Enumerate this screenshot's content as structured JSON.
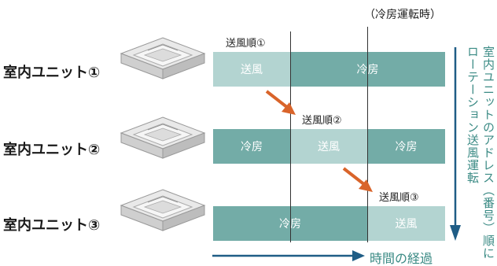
{
  "header_note": "（冷房運転時）",
  "units": [
    {
      "label": "室内ユニット①",
      "segments": [
        {
          "text": "送風",
          "mode": "fan"
        },
        {
          "text": "冷房",
          "mode": "cool"
        }
      ]
    },
    {
      "label": "室内ユニット②",
      "segments": [
        {
          "text": "冷房",
          "mode": "cool"
        },
        {
          "text": "送風",
          "mode": "fan"
        },
        {
          "text": "冷房",
          "mode": "cool"
        }
      ]
    },
    {
      "label": "室内ユニット③",
      "segments": [
        {
          "text": "冷房",
          "mode": "cool"
        },
        {
          "text": "送風",
          "mode": "fan"
        }
      ]
    }
  ],
  "order_labels": [
    "送風順①",
    "送風順②",
    "送風順③"
  ],
  "time_label": "時間の経過",
  "side_text_line1": "室内ユニットのアドレス（番号）順に",
  "side_text_line2": "ローテーション送風運転",
  "colors": {
    "fan": "#b3d4d1",
    "cool": "#73aca7",
    "arrow_orange": "#d9642a",
    "arrow_blue": "#1f5d86",
    "side_text": "#3a8a84"
  },
  "icons": [
    "cassette-ac-unit-icon",
    "orange-step-arrow-icon",
    "time-arrow-icon",
    "down-arrow-icon"
  ]
}
